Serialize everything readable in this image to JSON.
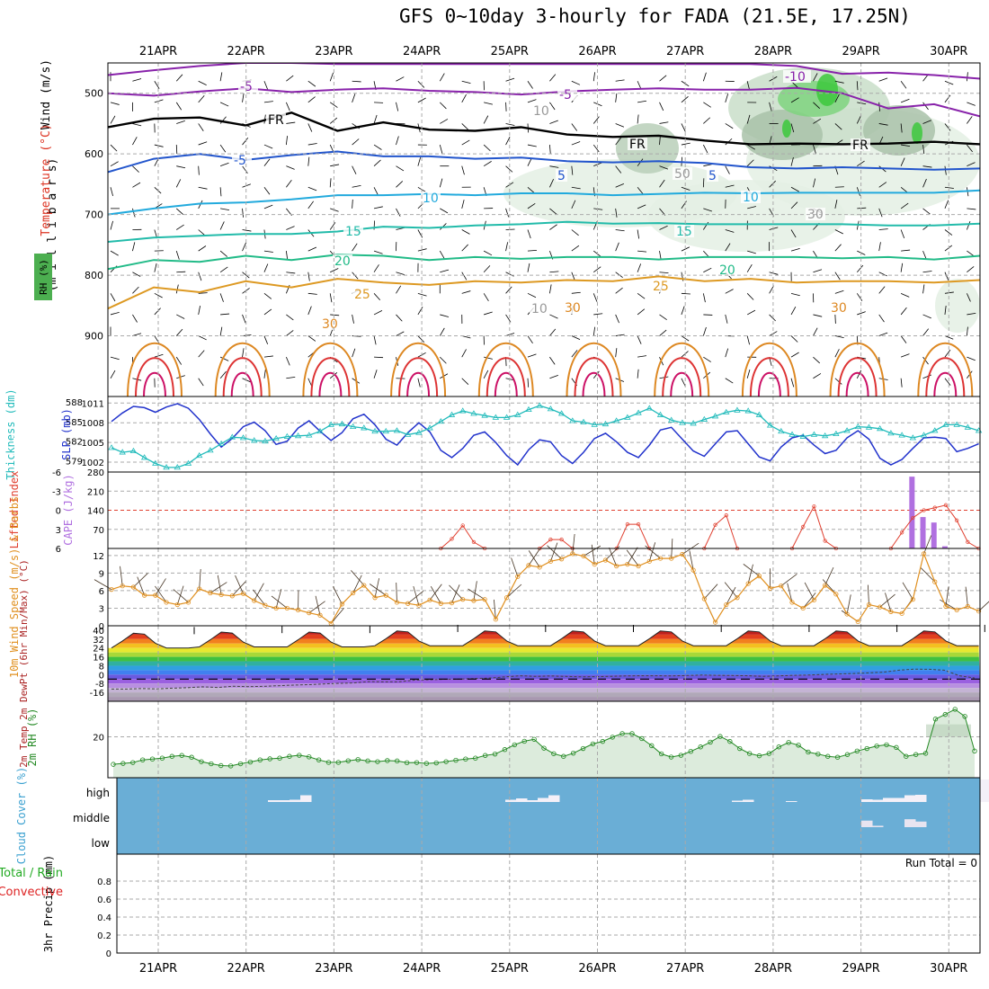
{
  "header": {
    "title": "GFS 0~10day 3-hourly for FADA (21.5E, 17.25N)"
  },
  "dates": [
    "21APR",
    "22APR",
    "23APR",
    "24APR",
    "25APR",
    "26APR",
    "27APR",
    "28APR",
    "29APR",
    "30APR"
  ],
  "colors": {
    "grid": "#aaaaaa",
    "slp": "#2233cc",
    "thickness": "#22bbbb",
    "lifted": "#e04030",
    "cape": "#b070e0",
    "wind": "#e09020",
    "rh2m": "#228822",
    "rh2m_fill": "#dcebdc",
    "cloud": "#6aaed6",
    "precip_label_green": "#22aa22",
    "precip_label_red": "#dd2222"
  },
  "chart_data": [
    {
      "type": "line",
      "panel": "upper-air",
      "ylabel": "(m i l l i b a r s)",
      "legend_labels": [
        "Wind (m/s)",
        "Temperature (°C)",
        "RH (%)"
      ],
      "yticks": [
        500,
        600,
        700,
        800,
        900
      ],
      "ylim": [
        1000,
        450
      ],
      "contour_labels": [
        "-10",
        "-5",
        "-5",
        "FR",
        "FR",
        "FR",
        "-5",
        "5",
        "5",
        "10",
        "10",
        "15",
        "15",
        "20",
        "20",
        "25",
        "25",
        "30",
        "30",
        "30",
        "10",
        "10",
        "50",
        "30"
      ],
      "isotherms": [
        {
          "name": "-10",
          "p": [
            470,
            462,
            455,
            450,
            450,
            452,
            452,
            452,
            452,
            452,
            452,
            452,
            452,
            452,
            452,
            455,
            468,
            466,
            470,
            476
          ]
        },
        {
          "name": "-5",
          "p": [
            500,
            504,
            497,
            492,
            498,
            494,
            492,
            496,
            498,
            502,
            497,
            494,
            492,
            494,
            494,
            491,
            500,
            525,
            518,
            538
          ]
        },
        {
          "name": "FR",
          "p": [
            556,
            542,
            540,
            553,
            532,
            562,
            548,
            560,
            562,
            556,
            568,
            572,
            570,
            578,
            584,
            583,
            584,
            583,
            580,
            584
          ]
        },
        {
          "name": "5",
          "p": [
            630,
            608,
            600,
            610,
            602,
            596,
            604,
            604,
            608,
            606,
            612,
            614,
            612,
            615,
            622,
            624,
            622,
            624,
            626,
            624
          ]
        },
        {
          "name": "10",
          "p": [
            700,
            690,
            682,
            680,
            675,
            668,
            668,
            666,
            668,
            665,
            665,
            668,
            666,
            664,
            665,
            664,
            664,
            664,
            664,
            660
          ]
        },
        {
          "name": "15",
          "p": [
            745,
            738,
            735,
            732,
            732,
            728,
            720,
            722,
            718,
            716,
            712,
            715,
            714,
            716,
            716,
            716,
            716,
            718,
            718,
            715
          ]
        },
        {
          "name": "20",
          "p": [
            790,
            775,
            778,
            768,
            775,
            766,
            768,
            775,
            770,
            773,
            770,
            770,
            774,
            770,
            770,
            770,
            772,
            770,
            774,
            768
          ]
        },
        {
          "name": "25",
          "p": [
            855,
            820,
            828,
            810,
            820,
            806,
            812,
            816,
            810,
            812,
            808,
            810,
            802,
            810,
            806,
            812,
            810,
            810,
            812,
            808
          ]
        }
      ],
      "rh_levels": [
        10,
        30,
        50,
        70,
        90
      ]
    },
    {
      "type": "line",
      "panel": "slp-thickness",
      "ylabel_left": "1000-500mb Thickness (dm)",
      "ylabel_right": "SLP (mb)",
      "yticks_left": [
        579,
        582,
        585,
        588
      ],
      "yticks_right": [
        1002,
        1005,
        1008,
        1011
      ],
      "x": [
        0,
        1,
        2,
        3,
        4,
        5,
        6,
        7,
        8,
        9,
        10,
        11,
        12,
        13,
        14,
        15,
        16,
        17,
        18,
        19,
        20,
        21,
        22,
        23,
        24,
        25,
        26,
        27,
        28,
        29,
        30,
        31,
        32,
        33,
        34,
        35,
        36,
        37,
        38,
        39,
        40,
        41,
        42,
        43,
        44,
        45,
        46,
        47,
        48,
        49,
        50,
        51,
        52,
        53,
        54,
        55,
        56,
        57,
        58,
        59,
        60,
        61,
        62,
        63,
        64,
        65,
        66,
        67,
        68,
        69,
        70,
        71,
        72,
        73,
        74,
        75,
        76,
        77,
        78,
        79
      ],
      "series": [
        {
          "name": "SLP (mb)",
          "values": [
            1008.2,
            1009.5,
            1010.5,
            1010.3,
            1009.6,
            1010.4,
            1010.9,
            1010.2,
            1008.5,
            1006.3,
            1004.3,
            1005.6,
            1007.4,
            1008.1,
            1006.8,
            1004.7,
            1005.2,
            1007.2,
            1008.3,
            1006.7,
            1005.3,
            1006.5,
            1008.6,
            1009.3,
            1007.7,
            1005.5,
            1004.6,
            1006.5,
            1008.0,
            1006.6,
            1003.8,
            1002.7,
            1004.1,
            1006.1,
            1006.6,
            1005.0,
            1003.0,
            1001.6,
            1003.9,
            1005.4,
            1005.1,
            1003.0,
            1001.8,
            1003.5,
            1005.6,
            1006.4,
            1005.1,
            1003.5,
            1002.7,
            1004.6,
            1006.9,
            1007.3,
            1005.5,
            1003.7,
            1002.9,
            1004.8,
            1006.6,
            1006.8,
            1004.8,
            1002.8,
            1002.2,
            1004.3,
            1005.7,
            1006.1,
            1004.6,
            1003.3,
            1003.8,
            1005.7,
            1006.8,
            1005.5,
            1002.6,
            1001.6,
            1002.4,
            1004.1,
            1005.7,
            1005.8,
            1005.6,
            1003.6,
            1004.1,
            1004.8
          ]
        },
        {
          "name": "Thickness (dm)",
          "values": [
            581.0,
            580.3,
            580.5,
            579.5,
            578.6,
            578.0,
            578.0,
            578.6,
            579.8,
            580.6,
            581.6,
            582.6,
            582.5,
            582.1,
            582.0,
            582.4,
            582.7,
            582.8,
            582.9,
            583.5,
            584.5,
            584.6,
            584.2,
            584.0,
            583.5,
            583.5,
            583.6,
            583.0,
            583.3,
            584.0,
            585.0,
            586.0,
            586.6,
            586.2,
            585.9,
            585.6,
            585.6,
            586.0,
            586.8,
            587.4,
            586.9,
            586.2,
            585.1,
            584.9,
            584.5,
            584.6,
            585.1,
            585.6,
            586.3,
            587.0,
            586.0,
            585.2,
            584.8,
            584.7,
            585.3,
            585.8,
            586.4,
            586.7,
            586.6,
            586.0,
            584.4,
            583.5,
            583.0,
            582.7,
            583.0,
            582.8,
            583.1,
            583.6,
            584.2,
            584.1,
            583.9,
            583.2,
            582.9,
            582.5,
            582.9,
            583.6,
            584.5,
            584.5,
            584.1,
            583.6
          ]
        }
      ]
    },
    {
      "type": "bar",
      "panel": "lifted-cape",
      "ylabel_left": "Lifted Index",
      "ylabel_right": "CAPE (J/kg)",
      "yticks_left": [
        "6",
        "3",
        "0",
        "-3",
        "-6"
      ],
      "yticks_right": [
        70,
        140,
        210,
        280
      ],
      "cape_bars": [
        {
          "x": 73,
          "value": 263
        },
        {
          "x": 74,
          "value": 115
        },
        {
          "x": 75,
          "value": 95
        },
        {
          "x": 76,
          "value": 8
        }
      ],
      "lifted_index": [
        [
          30,
          6,
          4.5,
          2.4,
          5,
          6
        ],
        [
          39,
          6,
          4.6,
          4.6,
          6
        ],
        [
          46,
          6,
          2.2,
          2.2,
          6
        ],
        [
          54,
          6,
          2.3,
          0.8,
          6
        ],
        [
          62,
          6,
          2.6,
          -0.6,
          4.8,
          6
        ],
        [
          71,
          6,
          3.5,
          1.2,
          0,
          -0.4,
          -0.8,
          1.6,
          5,
          6
        ]
      ]
    },
    {
      "type": "line",
      "panel": "10m-wind",
      "ylabel": "10m Wind Speed (m/s) & Barbs",
      "yticks": [
        0,
        3,
        6,
        9,
        12
      ],
      "ylim": [
        0,
        13
      ],
      "series": [
        {
          "name": "10m Wind Speed",
          "values": [
            6.2,
            6.8,
            6.6,
            5.2,
            5.2,
            4.0,
            3.6,
            4.0,
            6.3,
            5.6,
            5.3,
            5.1,
            5.5,
            4.3,
            3.5,
            3.0,
            3.0,
            2.7,
            2.2,
            1.8,
            0.4,
            3.7,
            5.6,
            6.9,
            4.8,
            5.2,
            4.0,
            3.8,
            3.5,
            4.4,
            3.8,
            3.9,
            4.5,
            4.3,
            4.5,
            1.1,
            4.8,
            8.4,
            10.3,
            10.0,
            11.0,
            11.4,
            12.3,
            11.9,
            10.5,
            11.2,
            10.2,
            10.5,
            10.2,
            11.0,
            11.5,
            11.5,
            12.2,
            9.5,
            4.6,
            0.6,
            3.6,
            4.8,
            7.2,
            8.5,
            6.4,
            6.8,
            4.0,
            3.0,
            4.4,
            6.9,
            5.4,
            2.0,
            0.7,
            3.6,
            3.2,
            2.4,
            2.1,
            4.5,
            12.3,
            7.5,
            3.3,
            2.7,
            3.3,
            2.5
          ]
        }
      ]
    },
    {
      "type": "area",
      "panel": "2m-temp",
      "ylabel": "2m Temp 2m DewPt (6hr Min/Max) (°C)",
      "yticks": [
        "40",
        "32",
        "24",
        "16",
        "8",
        "0",
        "-8",
        "-16"
      ],
      "ylim": [
        -24,
        44
      ],
      "temp_max_days": [
        38,
        39,
        39,
        40,
        40,
        40,
        40,
        40,
        40,
        40
      ],
      "temp_min_days": [
        24,
        25,
        25,
        26,
        26,
        26,
        26,
        26,
        26,
        26
      ],
      "dewpoint": [
        -13,
        -13,
        -12.5,
        -12.8,
        -12.2,
        -11.8,
        -11,
        -11.5,
        -10.5,
        -10.8,
        -10.6,
        -10,
        -9.4,
        -9,
        -8.4,
        -7.8,
        -7.5,
        -6.3,
        -6.5,
        -6.4,
        -5,
        -4.6,
        -4.2,
        -4,
        -3.5,
        -3,
        -2,
        -1,
        -1.6,
        -1.2,
        -1.6,
        -2,
        -1.8,
        -1.5,
        -1.2,
        -1,
        -1,
        -1.2,
        -0.8,
        -0.4,
        -0.6,
        -0.8,
        -1,
        -1.5,
        -1.2,
        -0.6,
        -0.4,
        0.2,
        0.6,
        1,
        1.6,
        2.2,
        4,
        5,
        4.8,
        4,
        -1,
        -3
      ]
    },
    {
      "type": "area",
      "panel": "2m-rh",
      "ylabel": "2m RH (%)",
      "yticks": [
        20
      ],
      "ylim": [
        0,
        40
      ],
      "series": [
        {
          "name": "2m RH",
          "values": [
            4.5,
            5,
            5.5,
            7,
            7.5,
            8,
            9,
            9.5,
            8.5,
            6,
            4.8,
            3.8,
            3.6,
            4.8,
            5.8,
            7,
            7.6,
            8,
            9,
            9.6,
            8.7,
            7,
            5.6,
            5.6,
            6.5,
            7.2,
            6.4,
            6,
            6.6,
            6.4,
            5.4,
            5.5,
            5,
            5.3,
            6,
            6.8,
            7.5,
            8,
            9.5,
            10.3,
            12.8,
            15.5,
            17.5,
            18.6,
            13.6,
            10.5,
            9,
            10.8,
            13.4,
            16,
            17.4,
            19.8,
            21.8,
            21.8,
            19,
            15,
            10.4,
            8.6,
            9.6,
            11.8,
            14.3,
            17,
            20.2,
            17.4,
            13.4,
            10.6,
            9.3,
            10.6,
            14.3,
            16.8,
            15.3,
            11.4,
            10.3,
            9,
            8.5,
            10,
            12,
            13.4,
            14.8,
            15.5,
            14,
            9,
            10,
            10.7,
            30,
            32.6,
            35.5,
            31.5,
            12
          ]
        }
      ]
    },
    {
      "type": "bar",
      "panel": "cloud-cover",
      "ylabel": "Cloud Cover (%)",
      "yticks": [
        "high",
        "middle",
        "low"
      ],
      "high_cover": [
        [
          14,
          8
        ],
        [
          15,
          8
        ],
        [
          16,
          10
        ],
        [
          17,
          30
        ],
        [
          36,
          10
        ],
        [
          37,
          16
        ],
        [
          38,
          8
        ],
        [
          39,
          18
        ],
        [
          40,
          30
        ],
        [
          57,
          6
        ],
        [
          58,
          10
        ],
        [
          62,
          4
        ],
        [
          69,
          12
        ],
        [
          70,
          10
        ],
        [
          71,
          18
        ],
        [
          72,
          18
        ],
        [
          73,
          30
        ],
        [
          74,
          32
        ],
        [
          80,
          100
        ],
        [
          81,
          100
        ],
        [
          82,
          82
        ],
        [
          83,
          88
        ],
        [
          84,
          70
        ],
        [
          85,
          100
        ],
        [
          86,
          100
        ],
        [
          87,
          100
        ],
        [
          88,
          100
        ],
        [
          89,
          100
        ]
      ],
      "mid_cover": [
        [
          69,
          28
        ],
        [
          70,
          6
        ],
        [
          73,
          34
        ],
        [
          74,
          24
        ]
      ]
    },
    {
      "type": "line",
      "panel": "precip",
      "ylabel": "3hr Precip (mm)",
      "legend_labels": [
        "Total / Rain",
        "Convective"
      ],
      "yticks": [
        "0",
        "0.2",
        "0.4",
        "0.6",
        "0.8"
      ],
      "ylim": [
        0,
        1
      ],
      "run_total": "Run Total = 0"
    }
  ]
}
